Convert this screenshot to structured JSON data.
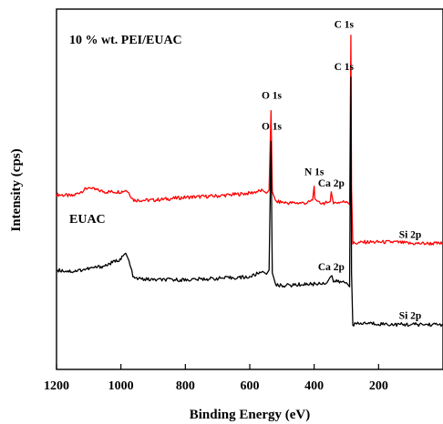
{
  "chart_data": {
    "type": "line",
    "xlabel": "Binding Energy (eV)",
    "ylabel": "Intensity (cps)",
    "xlim": [
      1200,
      0
    ],
    "x_ticks": [
      1200,
      1000,
      800,
      600,
      400,
      200
    ],
    "y_ticks_shown": false,
    "grid": false,
    "legend": "none",
    "series": [
      {
        "name": "10 % wt. PEI/EUAC",
        "color": "#ff0000",
        "baseline_cps": 6400,
        "points": [
          [
            1200,
            5800
          ],
          [
            1150,
            5750
          ],
          [
            1100,
            6050
          ],
          [
            1090,
            6000
          ],
          [
            1050,
            5900
          ],
          [
            1000,
            5900
          ],
          [
            985,
            5950
          ],
          [
            975,
            5850
          ],
          [
            960,
            5600
          ],
          [
            900,
            5600
          ],
          [
            800,
            5700
          ],
          [
            700,
            5750
          ],
          [
            600,
            5850
          ],
          [
            560,
            5950
          ],
          [
            548,
            5850
          ],
          [
            540,
            5950
          ],
          [
            534,
            8800
          ],
          [
            530,
            5900
          ],
          [
            520,
            5550
          ],
          [
            480,
            5500
          ],
          [
            420,
            5500
          ],
          [
            405,
            5600
          ],
          [
            400,
            6100
          ],
          [
            398,
            5650
          ],
          [
            390,
            5500
          ],
          [
            360,
            5500
          ],
          [
            350,
            5550
          ],
          [
            347,
            5900
          ],
          [
            340,
            5500
          ],
          [
            300,
            5550
          ],
          [
            290,
            5450
          ],
          [
            286,
            11500
          ],
          [
            284,
            6000
          ],
          [
            280,
            4050
          ],
          [
            240,
            4100
          ],
          [
            150,
            4100
          ],
          [
            100,
            4050
          ],
          [
            0,
            4050
          ]
        ],
        "peaks": [
          {
            "label": "O 1s",
            "x": 532
          },
          {
            "label": "N 1s",
            "x": 400
          },
          {
            "label": "Ca 2p",
            "x": 347
          },
          {
            "label": "C 1s",
            "x": 285
          },
          {
            "label": "Si 2p",
            "x": 102
          }
        ]
      },
      {
        "name": "EUAC",
        "color": "#000000",
        "baseline_cps": 0,
        "points": [
          [
            1200,
            3100
          ],
          [
            1150,
            3050
          ],
          [
            1100,
            3150
          ],
          [
            1050,
            3250
          ],
          [
            1000,
            3500
          ],
          [
            985,
            3700
          ],
          [
            975,
            3400
          ],
          [
            960,
            2800
          ],
          [
            900,
            2750
          ],
          [
            800,
            2750
          ],
          [
            700,
            2800
          ],
          [
            600,
            2850
          ],
          [
            560,
            3050
          ],
          [
            548,
            2950
          ],
          [
            540,
            3100
          ],
          [
            534,
            7700
          ],
          [
            530,
            3000
          ],
          [
            520,
            2550
          ],
          [
            480,
            2550
          ],
          [
            420,
            2600
          ],
          [
            400,
            2600
          ],
          [
            360,
            2650
          ],
          [
            350,
            2850
          ],
          [
            345,
            2900
          ],
          [
            340,
            2700
          ],
          [
            300,
            2650
          ],
          [
            290,
            2500
          ],
          [
            286,
            10000
          ],
          [
            284,
            3000
          ],
          [
            280,
            1150
          ],
          [
            240,
            1200
          ],
          [
            150,
            1150
          ],
          [
            100,
            1150
          ],
          [
            0,
            1150
          ]
        ],
        "peaks": [
          {
            "label": "O 1s",
            "x": 532
          },
          {
            "label": "Ca 2p",
            "x": 347
          },
          {
            "label": "C 1s",
            "x": 285
          },
          {
            "label": "Si 2p",
            "x": 102
          }
        ]
      }
    ]
  }
}
